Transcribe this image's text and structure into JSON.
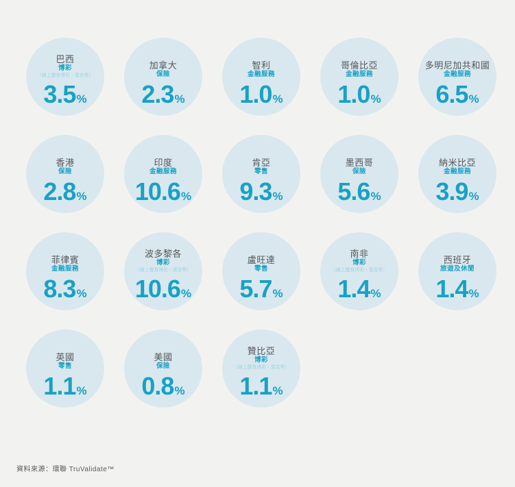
{
  "page_background": "#f2f3f0",
  "colors": {
    "bubble_fill": "#d9e8ee",
    "accent_teal": "#18a1c6",
    "country_name_gray": "#55575b",
    "note_light_teal": "#9ed5e3",
    "footer_gray": "#57585a"
  },
  "chart_data": {
    "type": "bubble",
    "layout": "grid-5-columns-4-rows",
    "unit_symbol": "%",
    "legend_position": "none",
    "items": [
      {
        "country": "巴西",
        "category": "博彩",
        "note": "（線上體育博彩・撲克等）",
        "value": "3.5"
      },
      {
        "country": "加拿大",
        "category": "保險",
        "note": "",
        "value": "2.3"
      },
      {
        "country": "智利",
        "category": "金融服務",
        "note": "",
        "value": "1.0"
      },
      {
        "country": "哥倫比亞",
        "category": "金融服務",
        "note": "",
        "value": "1.0"
      },
      {
        "country": "多明尼加共和國",
        "category": "金融服務",
        "note": "",
        "value": "6.5"
      },
      {
        "country": "香港",
        "category": "保險",
        "note": "",
        "value": "2.8"
      },
      {
        "country": "印度",
        "category": "金融服務",
        "note": "",
        "value": "10.6"
      },
      {
        "country": "肯亞",
        "category": "零售",
        "note": "",
        "value": "9.3"
      },
      {
        "country": "墨西哥",
        "category": "保險",
        "note": "",
        "value": "5.6"
      },
      {
        "country": "納米比亞",
        "category": "金融服務",
        "note": "",
        "value": "3.9"
      },
      {
        "country": "菲律賓",
        "category": "金融服務",
        "note": "",
        "value": "8.3"
      },
      {
        "country": "波多黎各",
        "category": "博彩",
        "note": "（線上體育博彩・撲克等）",
        "value": "10.6"
      },
      {
        "country": "盧旺達",
        "category": "零售",
        "note": "",
        "value": "5.7"
      },
      {
        "country": "南非",
        "category": "博彩",
        "note": "（線上體育博彩・撲克等）",
        "value": "1.4"
      },
      {
        "country": "西班牙",
        "category": "旅遊及休閒",
        "note": "",
        "value": "1.4"
      },
      {
        "country": "英國",
        "category": "零售",
        "note": "",
        "value": "1.1"
      },
      {
        "country": "美國",
        "category": "保險",
        "note": "",
        "value": "0.8"
      },
      {
        "country": "贊比亞",
        "category": "博彩",
        "note": "（線上體育博彩・撲克等）",
        "value": "1.1"
      }
    ]
  },
  "footer": {
    "source": "資料來源：環聯 TruValidate™"
  }
}
